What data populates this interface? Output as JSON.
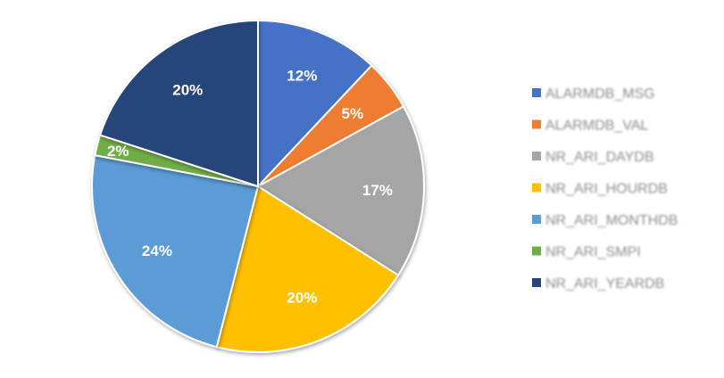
{
  "chart_data": {
    "type": "pie",
    "categories": [
      "ALARMDB_MSG",
      "ALARMDB_VAL",
      "NR_ARI_DAYDB",
      "NR_ARI_HOURDB",
      "NR_ARI_MONTHDB",
      "NR_ARI_SMPI",
      "NR_ARI_YEARDB"
    ],
    "values": [
      12,
      5,
      17,
      20,
      24,
      2,
      20
    ],
    "value_labels": [
      "12%",
      "5%",
      "17%",
      "20%",
      "24%",
      "2%",
      "20%"
    ],
    "colors": [
      "#4472c4",
      "#ed7d31",
      "#a5a5a5",
      "#ffc000",
      "#5b9bd5",
      "#70ad47",
      "#264478"
    ],
    "legend_position": "right",
    "start_angle_deg": 0,
    "direction": "clockwise"
  }
}
